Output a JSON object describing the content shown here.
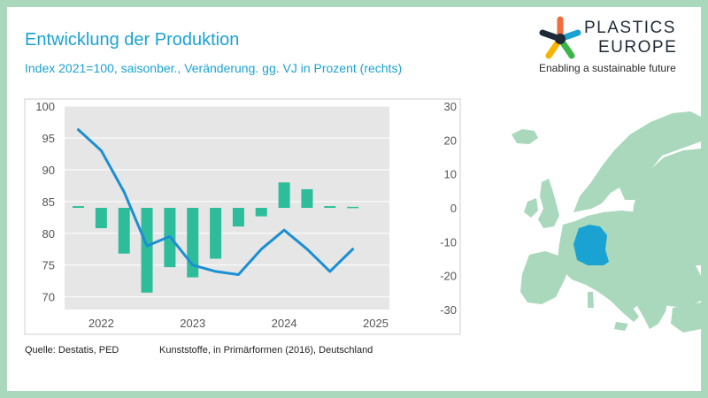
{
  "title": "Entwicklung der Produktion",
  "subtitle": "Index 2021=100, saisonber., Veränderung. gg. VJ in Prozent (rechts)",
  "brand": {
    "name_line1": "PLASTICS",
    "name_line2": "EUROPE",
    "tagline": "Enabling a sustainable future",
    "logo_colors": [
      "#f26b3a",
      "#1aa3d2",
      "#3bb54a",
      "#f7b500",
      "#1e2a36"
    ]
  },
  "footer": {
    "source": "Quelle: Destatis, PED",
    "series_description": "Kunststoffe, in Primärformen (2016), Deutschland"
  },
  "map": {
    "highlighted_country": "Deutschland",
    "highlight_color": "#1aa3d2",
    "land_color": "#a9d8bd"
  },
  "chart_data": {
    "type": "bar+line",
    "x_tick_labels": [
      "2022",
      "2023",
      "2024",
      "2025"
    ],
    "y_left": {
      "ylim": [
        68,
        100
      ],
      "ticks": [
        100,
        95,
        90,
        85,
        80,
        75,
        70
      ]
    },
    "y_right": {
      "ylim": [
        -30,
        30
      ],
      "ticks": [
        30,
        20,
        10,
        0,
        -10,
        -20,
        -30
      ]
    },
    "grid": true,
    "legend": "none",
    "plot_background": "#e6e6e6",
    "series": [
      {
        "kind": "line",
        "axis": "left",
        "color": "#1a8fd3",
        "x": [
          2021.75,
          2022.0,
          2022.25,
          2022.5,
          2022.75,
          2023.0,
          2023.25,
          2023.5,
          2023.75,
          2024.0,
          2024.25,
          2024.5,
          2024.75
        ],
        "values": [
          96.3,
          93.0,
          86.5,
          78.0,
          79.5,
          75.0,
          74.0,
          73.5,
          77.5,
          80.5,
          77.5,
          74.0,
          77.5
        ]
      },
      {
        "kind": "bar",
        "axis": "right",
        "color": "#2ebd9a",
        "x": [
          2021.75,
          2022.0,
          2022.25,
          2022.5,
          2022.75,
          2023.0,
          2023.25,
          2023.5,
          2023.75,
          2024.0,
          2024.25,
          2024.5,
          2024.75
        ],
        "values": [
          0.5,
          -6.0,
          -13.5,
          -25.0,
          -17.5,
          -20.5,
          -15.0,
          -5.5,
          -2.5,
          7.5,
          5.5,
          0.5,
          0.3
        ]
      }
    ]
  }
}
